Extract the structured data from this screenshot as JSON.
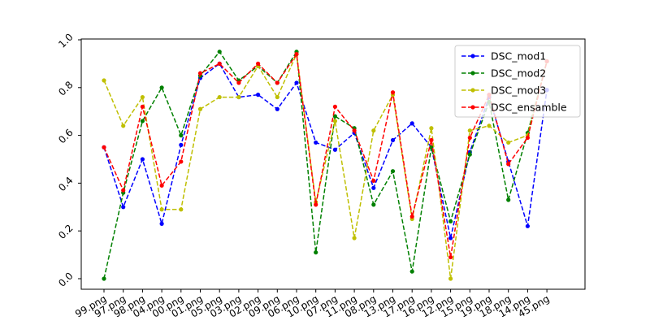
{
  "chart_data": {
    "type": "line",
    "title": "",
    "xlabel": "",
    "ylabel": "",
    "ylim": [
      0.0,
      1.0
    ],
    "yticks": [
      0.0,
      0.2,
      0.4,
      0.6,
      0.8,
      1.0
    ],
    "ytick_labels": [
      "0.0",
      "0.2",
      "0.4",
      "0.6",
      "0.8",
      "1.0"
    ],
    "grid": false,
    "legend_position": "top-right",
    "categories": [
      "99.png",
      "97.png",
      "98.png",
      "04.png",
      "00.png",
      "01.png",
      "05.png",
      "03.png",
      "02.png",
      "09.png",
      "06.png",
      "10.png",
      "07.png",
      "11.png",
      "08.png",
      "13.png",
      "17.png",
      "16.png",
      "12.png",
      "15.png",
      "19.png",
      "18.png",
      "14.png",
      "45.png"
    ],
    "series": [
      {
        "name": "DSC_mod1",
        "color": "#0000ff",
        "values": [
          0.55,
          0.3,
          0.5,
          0.23,
          0.56,
          0.84,
          0.9,
          0.76,
          0.77,
          0.71,
          0.82,
          0.57,
          0.54,
          0.61,
          0.38,
          0.58,
          0.65,
          0.55,
          0.17,
          0.53,
          0.76,
          0.49,
          0.22,
          0.79
        ]
      },
      {
        "name": "DSC_mod2",
        "color": "#008000",
        "values": [
          0.0,
          0.36,
          0.66,
          0.8,
          0.6,
          0.85,
          0.95,
          0.83,
          0.89,
          0.82,
          0.95,
          0.11,
          0.68,
          0.63,
          0.31,
          0.45,
          0.03,
          0.55,
          0.24,
          0.52,
          0.74,
          0.33,
          0.61,
          0.91
        ]
      },
      {
        "name": "DSC_mod3",
        "color": "#bfbf00",
        "values": [
          0.83,
          0.64,
          0.76,
          0.29,
          0.29,
          0.71,
          0.76,
          0.76,
          0.89,
          0.76,
          0.94,
          0.32,
          0.66,
          0.17,
          0.62,
          0.77,
          0.25,
          0.63,
          0.0,
          0.62,
          0.64,
          0.57,
          0.6,
          0.91
        ]
      },
      {
        "name": "DSC_ensamble",
        "color": "#ff0000",
        "values": [
          0.55,
          0.37,
          0.72,
          0.39,
          0.49,
          0.86,
          0.9,
          0.82,
          0.9,
          0.82,
          0.94,
          0.31,
          0.72,
          0.62,
          0.41,
          0.78,
          0.26,
          0.58,
          0.09,
          0.59,
          0.77,
          0.48,
          0.59,
          0.91
        ]
      }
    ]
  }
}
